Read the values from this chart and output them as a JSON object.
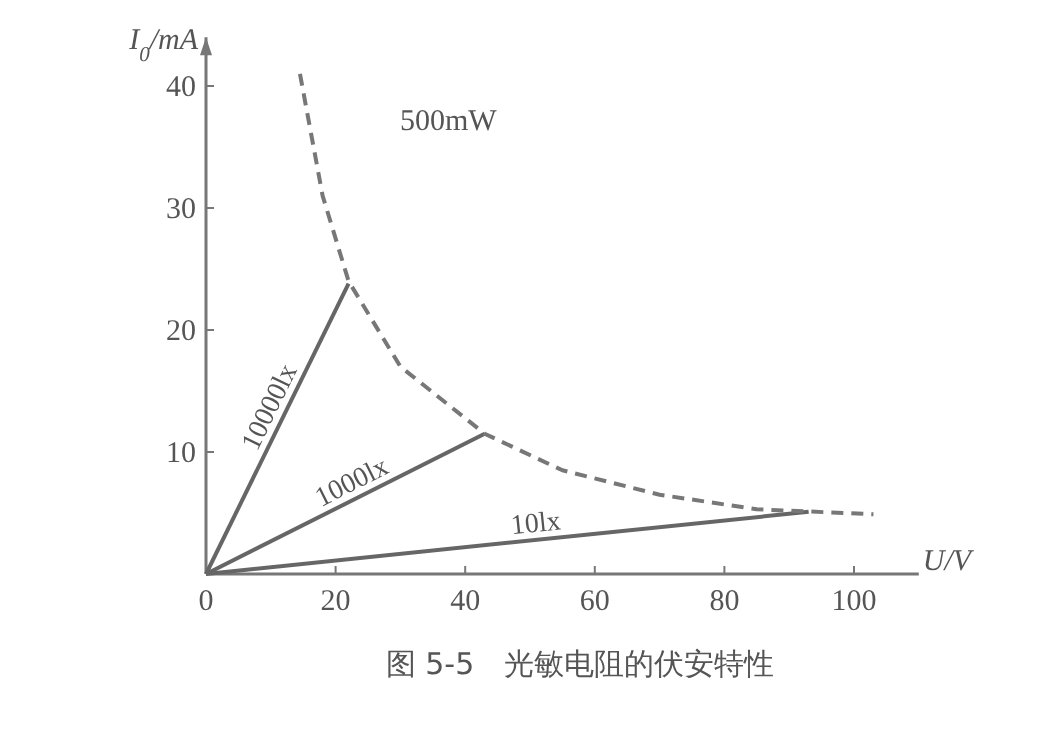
{
  "chart_data": {
    "type": "line",
    "title": "图 5-5　光敏电阻的伏安特性",
    "xlabel": "U/V",
    "ylabel": "I$_{0}$/mA",
    "xlim": [
      0,
      110
    ],
    "ylim": [
      0,
      44
    ],
    "xticks": [
      0,
      20,
      40,
      60,
      80,
      100
    ],
    "yticks": [
      10,
      20,
      30,
      40
    ],
    "grid": false,
    "marker": "none",
    "series": [
      {
        "name": "10000lx",
        "color": "#666666",
        "x": [
          0,
          22
        ],
        "values": [
          0,
          23.8
        ],
        "line_style": "solid"
      },
      {
        "name": "1000lx",
        "color": "#666666",
        "x": [
          0,
          43
        ],
        "values": [
          0,
          11.5
        ],
        "line_style": "solid"
      },
      {
        "name": "10lx",
        "color": "#666666",
        "x": [
          0,
          93
        ],
        "values": [
          0,
          5.1
        ],
        "line_style": "solid"
      },
      {
        "name": "500mW",
        "color": "#777777",
        "x": [
          14.5,
          18,
          22,
          30,
          43,
          55,
          70,
          85,
          103
        ],
        "values": [
          41,
          31,
          24,
          17,
          11.5,
          8.5,
          6.5,
          5.3,
          4.9
        ],
        "line_style": "dashed"
      }
    ]
  }
}
